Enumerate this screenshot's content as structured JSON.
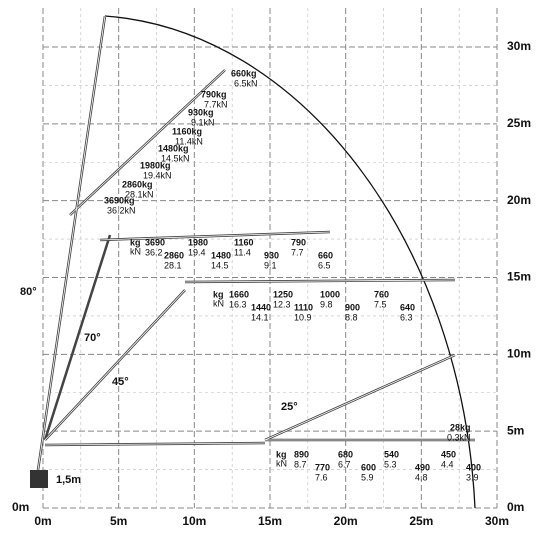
{
  "axes": {
    "origin_label": "0m",
    "x_labels": [
      "0m",
      "5m",
      "10m",
      "15m",
      "20m",
      "25m",
      "30m"
    ],
    "y_labels": [
      "0m",
      "5m",
      "10m",
      "15m",
      "20m",
      "25m",
      "30m"
    ]
  },
  "angle_labels": [
    "80°",
    "70°",
    "45°",
    "25°"
  ],
  "base_label": "1,5m",
  "tip_loads": [
    {
      "kg": "660kg",
      "kN": "6.5kN"
    },
    {
      "kg": "790kg",
      "kN": "7.7kN"
    },
    {
      "kg": "930kg",
      "kN": "9.1kN"
    },
    {
      "kg": "1160kg",
      "kN": "11.4kN"
    },
    {
      "kg": "1480kg",
      "kN": "14.5kN"
    },
    {
      "kg": "1980kg",
      "kN": "19.4kN"
    },
    {
      "kg": "2860kg",
      "kN": "28.1kN"
    },
    {
      "kg": "3690kg",
      "kN": "36.2kN"
    }
  ],
  "rows": [
    {
      "unit_kg": "kg",
      "unit_kN": "kN",
      "loads": [
        {
          "kg": "3690",
          "kN": "36.2"
        },
        {
          "kg": "2860",
          "kN": "28.1"
        },
        {
          "kg": "1980",
          "kN": "19.4"
        },
        {
          "kg": "1480",
          "kN": "14.5"
        },
        {
          "kg": "1160",
          "kN": "11.4"
        },
        {
          "kg": "930",
          "kN": "9.1"
        },
        {
          "kg": "790",
          "kN": "7.7"
        },
        {
          "kg": "660",
          "kN": "6.5"
        }
      ]
    },
    {
      "unit_kg": "kg",
      "unit_kN": "kN",
      "loads": [
        {
          "kg": "1660",
          "kN": "16.3"
        },
        {
          "kg": "1440",
          "kN": "14.1"
        },
        {
          "kg": "1250",
          "kN": "12.3"
        },
        {
          "kg": "1110",
          "kN": "10.9"
        },
        {
          "kg": "1000",
          "kN": "9.8"
        },
        {
          "kg": "900",
          "kN": "8.8"
        },
        {
          "kg": "760",
          "kN": "7.5"
        },
        {
          "kg": "640",
          "kN": "6.3"
        }
      ]
    },
    {
      "unit_kg": "kg",
      "unit_kN": "kN",
      "loads": [
        {
          "kg": "890",
          "kN": "8.7"
        },
        {
          "kg": "770",
          "kN": "7.6"
        },
        {
          "kg": "680",
          "kN": "6.7"
        },
        {
          "kg": "600",
          "kN": "5.9"
        },
        {
          "kg": "540",
          "kN": "5.3"
        },
        {
          "kg": "490",
          "kN": "4.8"
        },
        {
          "kg": "450",
          "kN": "4.4"
        },
        {
          "kg": "400",
          "kN": "3.9"
        }
      ]
    }
  ],
  "tip_25": {
    "kg": "28kg",
    "kN": "0.3kN"
  }
}
